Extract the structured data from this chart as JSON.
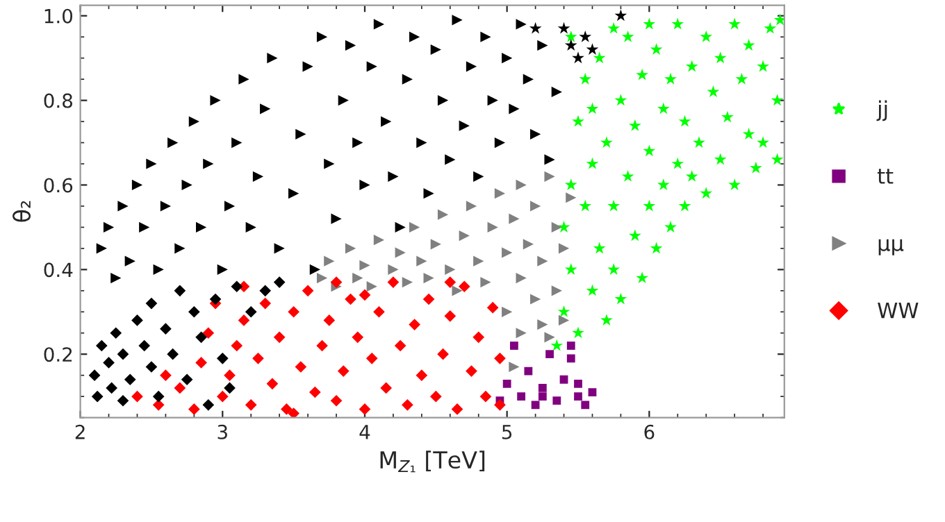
{
  "chart_data": {
    "type": "scatter",
    "xlabel": "M$_{Z₁}$ [TeV]",
    "ylabel": "θ₂",
    "xlim": [
      2,
      6.95
    ],
    "ylim": [
      0.05,
      1.025
    ],
    "xticks": [
      2,
      3,
      4,
      5,
      6
    ],
    "yticks": [
      0.2,
      0.4,
      0.6,
      0.8,
      {
        "value": 1,
        "label": "1.0"
      }
    ],
    "grid": false,
    "legend": "right",
    "series": [
      {
        "name": "jj",
        "color": "#00ff00",
        "marker": "star",
        "x": [
          5.35,
          5.4,
          5.4,
          5.45,
          5.45,
          5.5,
          5.5,
          5.55,
          5.55,
          5.6,
          5.6,
          5.65,
          5.65,
          5.7,
          5.7,
          5.75,
          5.75,
          5.8,
          5.8,
          5.85,
          5.85,
          5.9,
          5.9,
          5.95,
          5.95,
          6.0,
          6.0,
          6.05,
          6.05,
          6.1,
          6.1,
          6.15,
          6.15,
          6.2,
          6.2,
          6.25,
          6.25,
          6.3,
          6.3,
          6.35,
          6.4,
          6.4,
          6.45,
          6.5,
          6.5,
          6.55,
          6.6,
          6.6,
          6.65,
          6.7,
          6.7,
          6.75,
          6.8,
          6.8,
          6.85,
          6.9,
          6.9,
          6.92,
          5.45,
          5.6,
          6.0,
          5.75
        ],
        "values": [
          0.22,
          0.3,
          0.5,
          0.6,
          0.4,
          0.75,
          0.25,
          0.55,
          0.85,
          0.35,
          0.65,
          0.45,
          0.9,
          0.28,
          0.7,
          0.55,
          0.4,
          0.8,
          0.33,
          0.62,
          0.95,
          0.48,
          0.74,
          0.38,
          0.86,
          0.55,
          0.68,
          0.45,
          0.92,
          0.6,
          0.78,
          0.5,
          0.85,
          0.65,
          0.98,
          0.55,
          0.75,
          0.88,
          0.62,
          0.7,
          0.95,
          0.58,
          0.82,
          0.66,
          0.9,
          0.76,
          0.98,
          0.6,
          0.85,
          0.72,
          0.93,
          0.64,
          0.88,
          0.7,
          0.97,
          0.66,
          0.8,
          0.99,
          0.95,
          0.78,
          0.98,
          0.97
        ]
      },
      {
        "name": "tt",
        "color": "#800080",
        "marker": "square",
        "x": [
          4.95,
          5.0,
          5.05,
          5.1,
          5.15,
          5.2,
          5.25,
          5.3,
          5.35,
          5.4,
          5.45,
          5.5,
          5.55,
          5.6,
          5.45,
          5.25,
          5.5
        ],
        "values": [
          0.09,
          0.13,
          0.22,
          0.1,
          0.16,
          0.08,
          0.12,
          0.2,
          0.09,
          0.14,
          0.22,
          0.1,
          0.08,
          0.11,
          0.19,
          0.1,
          0.13
        ]
      },
      {
        "name": "μμ",
        "color": "#808080",
        "marker": "triangle",
        "x": [
          3.7,
          3.75,
          3.8,
          3.9,
          3.95,
          4.0,
          4.05,
          4.1,
          4.2,
          4.25,
          4.3,
          4.35,
          4.4,
          4.45,
          4.5,
          4.55,
          4.6,
          4.65,
          4.7,
          4.75,
          4.8,
          4.85,
          4.9,
          4.95,
          5.0,
          5.0,
          5.05,
          5.1,
          5.1,
          5.15,
          5.2,
          5.2,
          5.25,
          5.25,
          5.3,
          5.3,
          5.35,
          5.35,
          5.4,
          5.4,
          5.45,
          5.1,
          5.05
        ],
        "values": [
          0.38,
          0.42,
          0.36,
          0.45,
          0.38,
          0.41,
          0.36,
          0.47,
          0.4,
          0.44,
          0.37,
          0.5,
          0.42,
          0.38,
          0.46,
          0.53,
          0.4,
          0.35,
          0.48,
          0.55,
          0.42,
          0.37,
          0.5,
          0.58,
          0.44,
          0.3,
          0.52,
          0.38,
          0.6,
          0.46,
          0.33,
          0.55,
          0.27,
          0.42,
          0.62,
          0.24,
          0.5,
          0.35,
          0.28,
          0.45,
          0.57,
          0.25,
          0.17
        ]
      },
      {
        "name": "WW",
        "color": "#ff0000",
        "marker": "diamond",
        "x": [
          2.4,
          2.55,
          2.7,
          2.8,
          2.85,
          2.9,
          3.0,
          3.05,
          3.1,
          3.15,
          3.2,
          3.25,
          3.3,
          3.35,
          3.4,
          3.45,
          3.5,
          3.55,
          3.6,
          3.65,
          3.7,
          3.75,
          3.8,
          3.85,
          3.9,
          3.95,
          4.0,
          4.05,
          4.1,
          4.15,
          4.2,
          4.25,
          4.3,
          4.35,
          4.4,
          4.45,
          4.5,
          4.55,
          4.6,
          4.65,
          4.7,
          4.75,
          4.8,
          4.85,
          4.9,
          4.95,
          4.95,
          3.15,
          3.5,
          4.0,
          2.6,
          2.95,
          4.6,
          3.8
        ],
        "values": [
          0.1,
          0.08,
          0.12,
          0.07,
          0.18,
          0.25,
          0.1,
          0.15,
          0.22,
          0.28,
          0.08,
          0.19,
          0.32,
          0.13,
          0.24,
          0.07,
          0.3,
          0.17,
          0.35,
          0.11,
          0.22,
          0.28,
          0.09,
          0.16,
          0.33,
          0.24,
          0.07,
          0.19,
          0.3,
          0.12,
          0.37,
          0.22,
          0.08,
          0.27,
          0.15,
          0.33,
          0.1,
          0.2,
          0.29,
          0.07,
          0.36,
          0.16,
          0.24,
          0.1,
          0.31,
          0.19,
          0.08,
          0.36,
          0.06,
          0.34,
          0.15,
          0.32,
          0.37,
          0.37
        ]
      },
      {
        "color": "#000000",
        "marker": "triangle",
        "x": [
          2.15,
          2.2,
          2.25,
          2.3,
          2.35,
          2.4,
          2.45,
          2.5,
          2.55,
          2.6,
          2.65,
          2.7,
          2.75,
          2.8,
          2.85,
          2.9,
          2.95,
          3.0,
          3.05,
          3.1,
          3.15,
          3.2,
          3.25,
          3.3,
          3.35,
          3.4,
          3.5,
          3.55,
          3.6,
          3.65,
          3.7,
          3.75,
          3.8,
          3.85,
          3.9,
          3.95,
          4.0,
          4.05,
          4.1,
          4.15,
          4.2,
          4.25,
          4.3,
          4.35,
          4.4,
          4.45,
          4.5,
          4.55,
          4.6,
          4.65,
          4.7,
          4.75,
          4.8,
          4.85,
          4.9,
          4.95,
          5.0,
          5.05,
          5.1,
          5.15,
          5.2,
          5.25,
          5.3,
          5.35
        ],
        "values": [
          0.45,
          0.5,
          0.38,
          0.55,
          0.42,
          0.6,
          0.5,
          0.65,
          0.4,
          0.55,
          0.7,
          0.45,
          0.6,
          0.75,
          0.5,
          0.65,
          0.8,
          0.4,
          0.55,
          0.7,
          0.85,
          0.5,
          0.62,
          0.78,
          0.9,
          0.45,
          0.58,
          0.72,
          0.88,
          0.4,
          0.95,
          0.65,
          0.52,
          0.8,
          0.93,
          0.7,
          0.6,
          0.88,
          0.98,
          0.75,
          0.62,
          0.5,
          0.85,
          0.95,
          0.7,
          0.58,
          0.92,
          0.8,
          0.66,
          0.99,
          0.74,
          0.88,
          0.62,
          0.95,
          0.8,
          0.7,
          0.9,
          0.78,
          0.98,
          0.85,
          0.72,
          0.93,
          0.66,
          0.82
        ]
      },
      {
        "color": "#000000",
        "marker": "diamond",
        "x": [
          2.1,
          2.12,
          2.15,
          2.2,
          2.22,
          2.25,
          2.3,
          2.3,
          2.35,
          2.4,
          2.45,
          2.5,
          2.5,
          2.55,
          2.6,
          2.65,
          2.7,
          2.75,
          2.8,
          2.85,
          2.9,
          2.95,
          3.0,
          3.05,
          3.1,
          3.2,
          3.3,
          3.4
        ],
        "values": [
          0.15,
          0.1,
          0.22,
          0.18,
          0.12,
          0.25,
          0.2,
          0.09,
          0.14,
          0.28,
          0.22,
          0.17,
          0.32,
          0.1,
          0.26,
          0.2,
          0.35,
          0.14,
          0.3,
          0.24,
          0.08,
          0.33,
          0.19,
          0.12,
          0.36,
          0.3,
          0.35,
          0.37
        ]
      },
      {
        "color": "#000000",
        "marker": "star",
        "x": [
          5.2,
          5.4,
          5.55,
          5.8,
          5.6,
          5.45,
          5.5
        ],
        "values": [
          0.97,
          0.97,
          0.95,
          1.0,
          0.92,
          0.93,
          0.9
        ]
      }
    ]
  }
}
